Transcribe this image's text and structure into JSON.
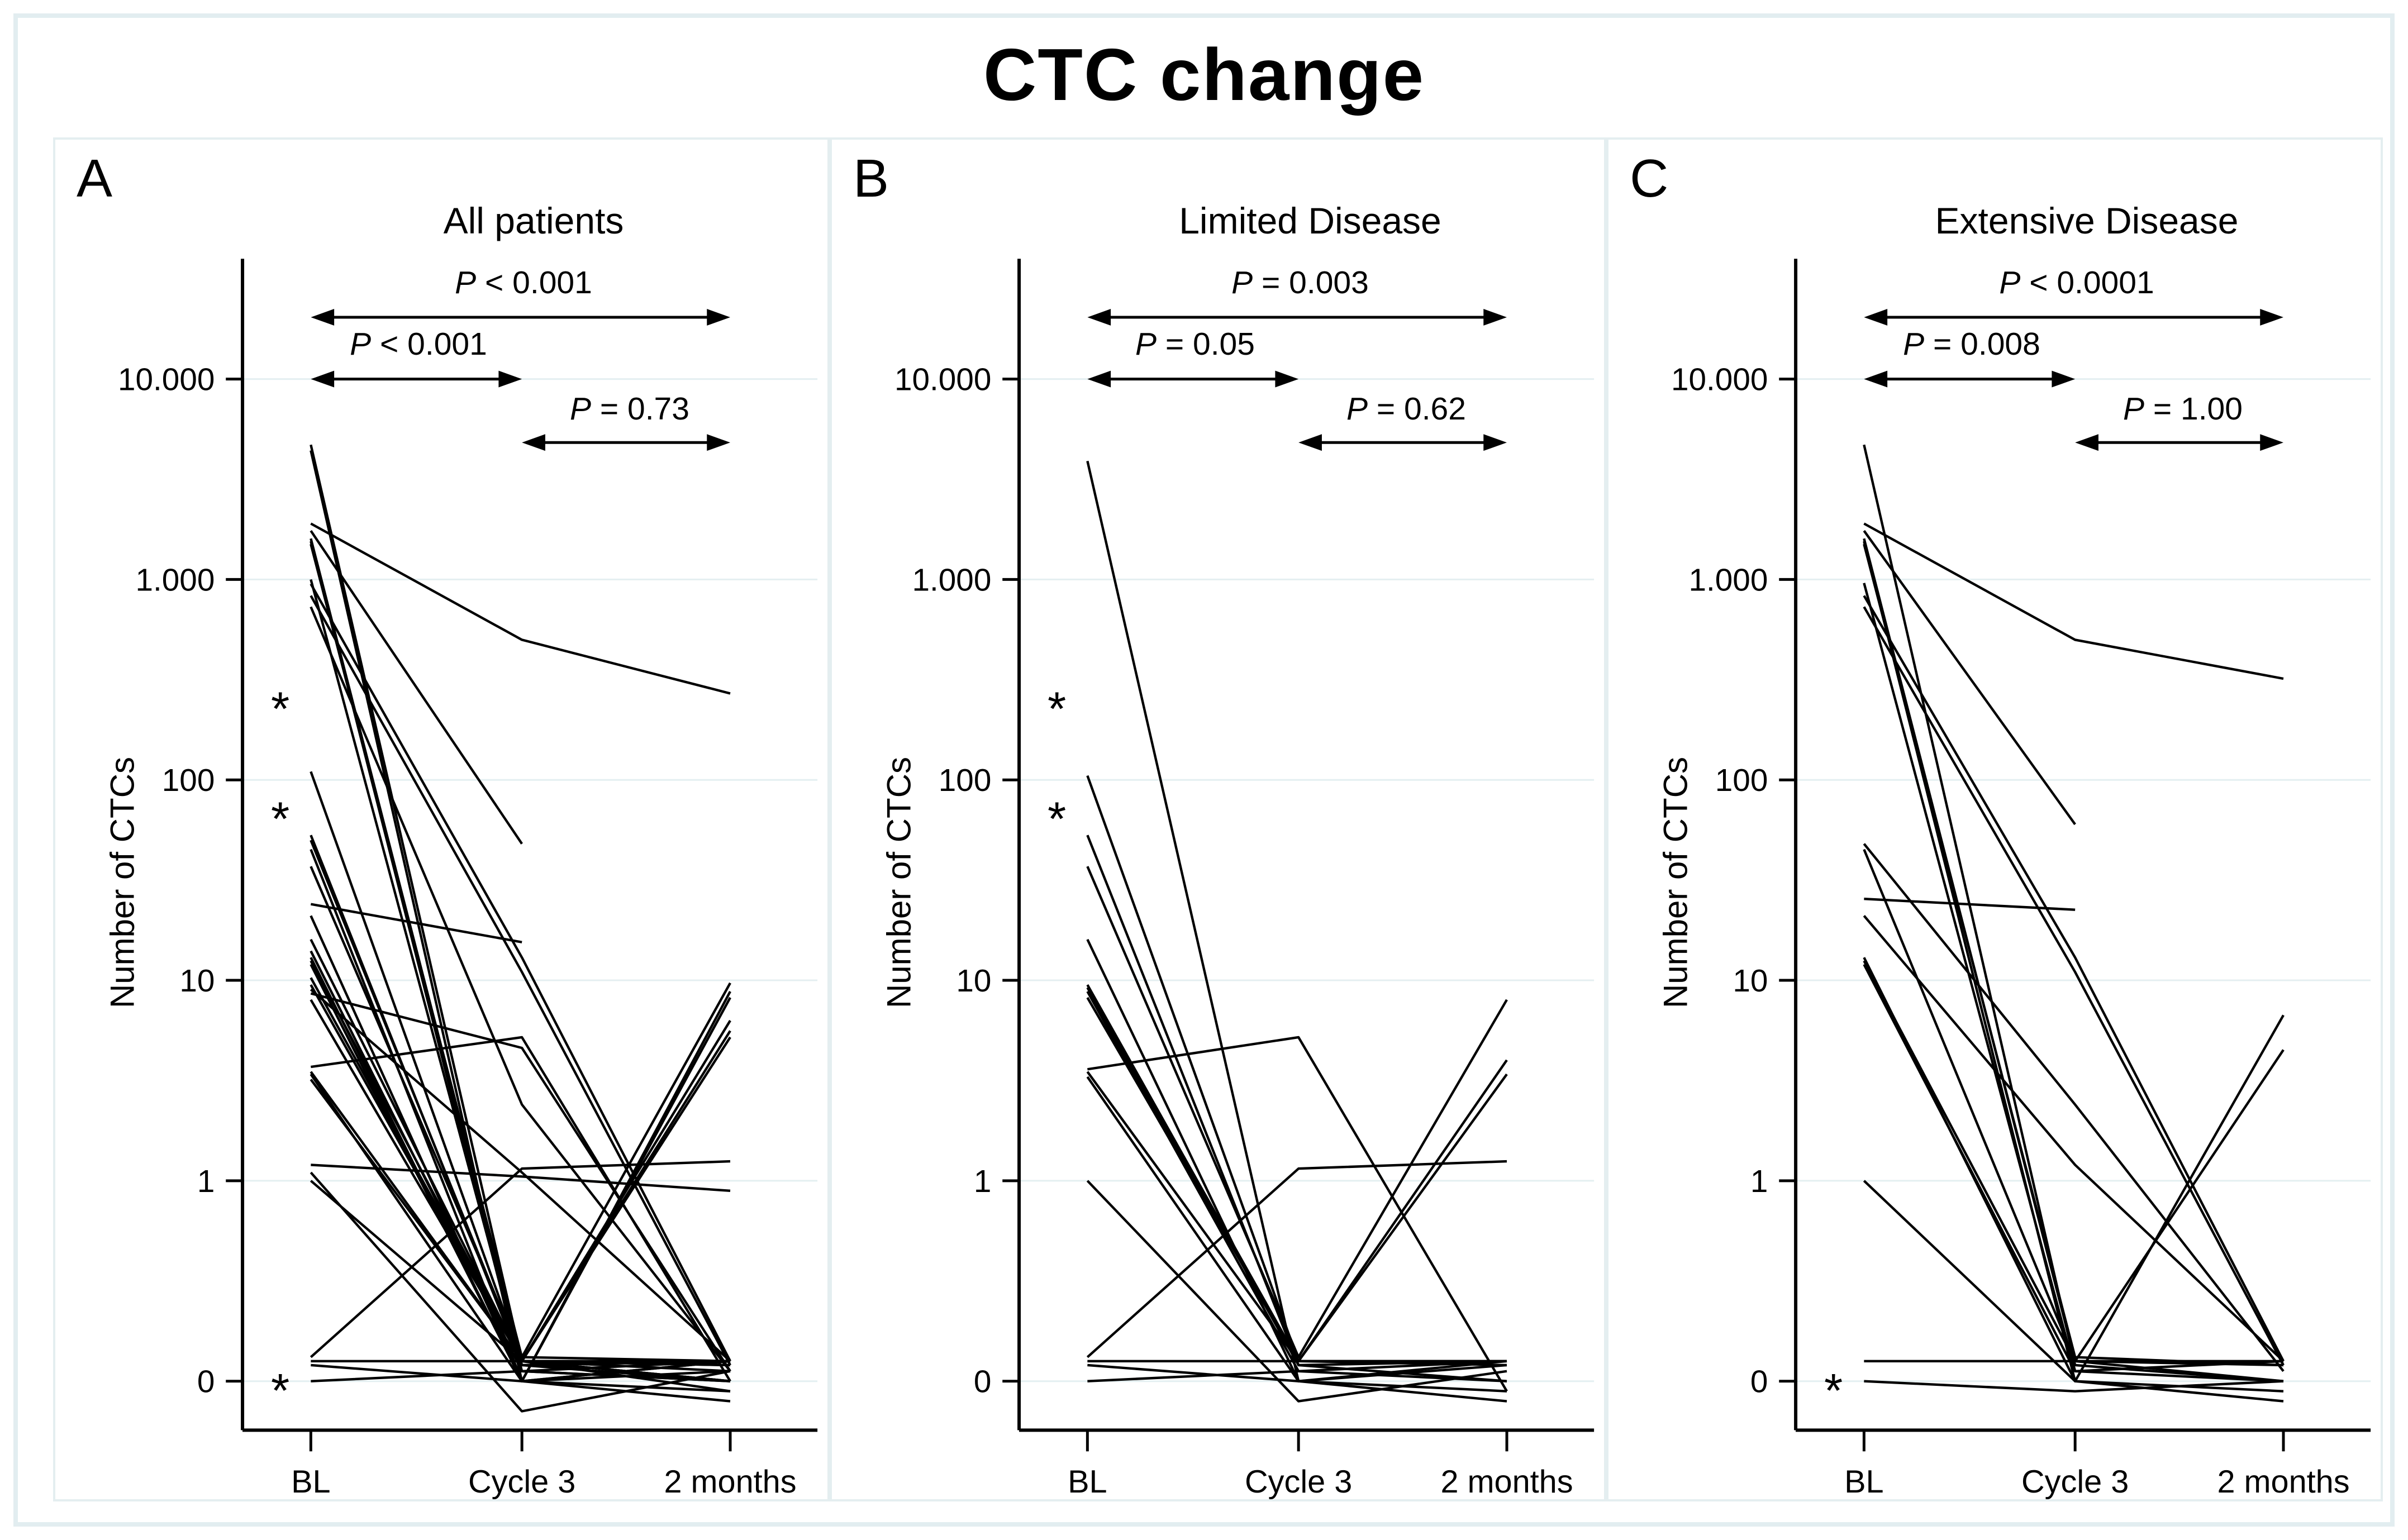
{
  "figure": {
    "title": "CTC change"
  },
  "colors": {
    "background": "#ffffff",
    "text": "#000000",
    "line": "#000000",
    "gridline": "#e4eff1",
    "panel_border": "#e4eef0",
    "outer_border": "#e2edf0"
  },
  "chart_data": {
    "type": "line",
    "description": "Spaghetti plots of individual patient circulating tumor cell (CTC) counts at baseline (BL), after cycle 3 and at 2 months; log-style y axis with a 0 baseline; one line per patient; * marks censored baseline values.",
    "x_categories": [
      "BL",
      "Cycle 3",
      "2 months"
    ],
    "y_axis": {
      "label": "Number of CTCs",
      "scale": "log (decade spacing, 0 plotted one decade below 1)",
      "ticks": [
        {
          "label": "10.000",
          "value": 10000
        },
        {
          "label": "1.000",
          "value": 1000
        },
        {
          "label": "100",
          "value": 100
        },
        {
          "label": "10",
          "value": 10
        },
        {
          "label": "1",
          "value": 1
        },
        {
          "label": "0",
          "value": 0
        }
      ]
    },
    "asterisk_glyph": "*",
    "panels": [
      {
        "panel_label": "A",
        "title": "All patients",
        "p_values": [
          {
            "span": "bl-2m",
            "p": "P",
            "text": " < 0.001"
          },
          {
            "span": "bl-c3",
            "p": "P",
            "text": " < 0.001"
          },
          {
            "span": "c3-2m",
            "p": "P",
            "text": " = 0.73"
          }
        ],
        "asterisks": [
          {
            "x": "BL",
            "value": 230
          },
          {
            "x": "BL",
            "value": 65
          },
          {
            "x": "BL",
            "value": -0.04
          }
        ],
        "series": [
          [
            4700,
            0.1,
            0.08
          ],
          [
            4400,
            0,
            -0.05
          ],
          [
            1900,
            500,
            270
          ],
          [
            1750,
            48,
            null
          ],
          [
            1600,
            0.1,
            0.1
          ],
          [
            1550,
            0.05,
            0
          ],
          [
            1500,
            0.12,
            0.1
          ],
          [
            1000,
            0.08,
            0
          ],
          [
            950,
            13,
            0.1
          ],
          [
            830,
            11,
            0.08
          ],
          [
            730,
            2.4,
            0.05
          ],
          [
            110,
            0.1,
            0
          ],
          [
            53,
            0.08,
            0.1
          ],
          [
            50,
            0.1,
            0
          ],
          [
            45,
            0,
            0.05
          ],
          [
            37,
            0.12,
            9.7
          ],
          [
            24,
            15.5,
            null
          ],
          [
            21,
            0,
            0.1
          ],
          [
            16,
            0.1,
            -0.05
          ],
          [
            14,
            0.05,
            0
          ],
          [
            13,
            0,
            8.8
          ],
          [
            12.5,
            0.1,
            0.1
          ],
          [
            12,
            0,
            8.2
          ],
          [
            10.3,
            0.1,
            0.05
          ],
          [
            9.5,
            0.1,
            6.3
          ],
          [
            9,
            1.1,
            0.1
          ],
          [
            8.6,
            4.6,
            0.05
          ],
          [
            8,
            0.1,
            5.6
          ],
          [
            3.7,
            5.2,
            0
          ],
          [
            3.5,
            0.1,
            5.2
          ],
          [
            3.4,
            0,
            0.1
          ],
          [
            3.2,
            0.1,
            0.08
          ],
          [
            1.2,
            1.05,
            0.95
          ],
          [
            1.1,
            -0.15,
            0.05
          ],
          [
            1,
            0.1,
            0
          ],
          [
            0.12,
            1.15,
            1.25
          ],
          [
            0.1,
            0.1,
            0.1
          ],
          [
            0.08,
            0,
            -0.1
          ],
          [
            0,
            0.05,
            0.1
          ]
        ]
      },
      {
        "panel_label": "B",
        "title": "Limited Disease",
        "p_values": [
          {
            "span": "bl-2m",
            "p": "P",
            "text": " = 0.003"
          },
          {
            "span": "bl-c3",
            "p": "P",
            "text": " = 0.05"
          },
          {
            "span": "c3-2m",
            "p": "P",
            "text": " = 0.62"
          }
        ],
        "asterisks": [
          {
            "x": "BL",
            "value": 230
          },
          {
            "x": "BL",
            "value": 65
          }
        ],
        "series": [
          [
            3900,
            0,
            0.08
          ],
          [
            105,
            0.1,
            0.1
          ],
          [
            53,
            0.08,
            0
          ],
          [
            37,
            0.12,
            8
          ],
          [
            16,
            0,
            -0.05
          ],
          [
            9.5,
            0.1,
            4
          ],
          [
            9.2,
            0.08,
            0.1
          ],
          [
            8.8,
            0.05,
            0
          ],
          [
            8.2,
            0.1,
            0.08
          ],
          [
            3.6,
            5.2,
            -0.05
          ],
          [
            3.5,
            0.1,
            3.4
          ],
          [
            3.3,
            0,
            0.1
          ],
          [
            1,
            -0.1,
            0.05
          ],
          [
            0.12,
            1.15,
            1.25
          ],
          [
            0.1,
            0.1,
            0.1
          ],
          [
            0.08,
            0,
            -0.1
          ],
          [
            0,
            0.05,
            0.1
          ]
        ]
      },
      {
        "panel_label": "C",
        "title": "Extensive Disease",
        "p_values": [
          {
            "span": "bl-2m",
            "p": "P",
            "text": " < 0.0001"
          },
          {
            "span": "bl-c3",
            "p": "P",
            "text": " = 0.008"
          },
          {
            "span": "c3-2m",
            "p": "P",
            "text": " = 1.00"
          }
        ],
        "asterisks": [
          {
            "x": "BL",
            "value": -0.04
          }
        ],
        "series": [
          [
            4700,
            0.08,
            0
          ],
          [
            1900,
            500,
            320
          ],
          [
            1750,
            60,
            null
          ],
          [
            1600,
            0.1,
            0.1
          ],
          [
            1550,
            0,
            -0.05
          ],
          [
            1500,
            0.12,
            0.08
          ],
          [
            960,
            0.05,
            0
          ],
          [
            830,
            13,
            0.1
          ],
          [
            730,
            11,
            0.08
          ],
          [
            48,
            2.4,
            0.05
          ],
          [
            45,
            0.1,
            0
          ],
          [
            25.5,
            22.5,
            null
          ],
          [
            21,
            1.2,
            0.1
          ],
          [
            13,
            0,
            6.7
          ],
          [
            12.5,
            0.1,
            4.5
          ],
          [
            12,
            0.05,
            0.1
          ],
          [
            1,
            0,
            -0.1
          ],
          [
            0.1,
            0.1,
            0.08
          ],
          [
            0,
            -0.05,
            0
          ]
        ]
      }
    ],
    "layout_hints": {
      "grid": "horizontal gridlines at each labeled tick",
      "legend": "none",
      "annotations": "double-headed arrows between timepoints with P values above each arrow"
    }
  }
}
